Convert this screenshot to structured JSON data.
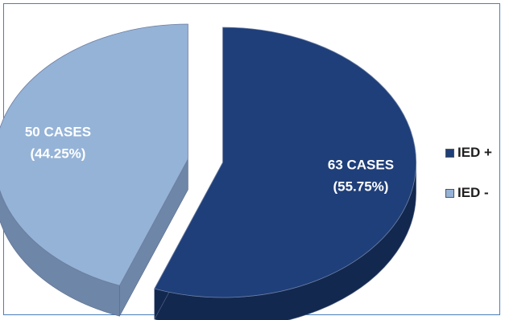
{
  "chart_data": {
    "type": "pie",
    "title": "",
    "three_d": true,
    "exploded": true,
    "slices": [
      {
        "name": "IED +",
        "value": 63,
        "percent": 55.75,
        "label_line1": "63 CASES",
        "label_line2": "(55.75%)",
        "color": "#1f3f7a",
        "side_color": "#13284f"
      },
      {
        "name": "IED -",
        "value": 50,
        "percent": 44.25,
        "label_line1": "50 CASES",
        "label_line2": "(44.25%)",
        "color": "#95b3d7",
        "side_color": "#6e86a7"
      }
    ],
    "legend": {
      "position": "right",
      "entries": [
        "IED +",
        "IED -"
      ]
    }
  },
  "frame_border_color": "#4a7ebb"
}
